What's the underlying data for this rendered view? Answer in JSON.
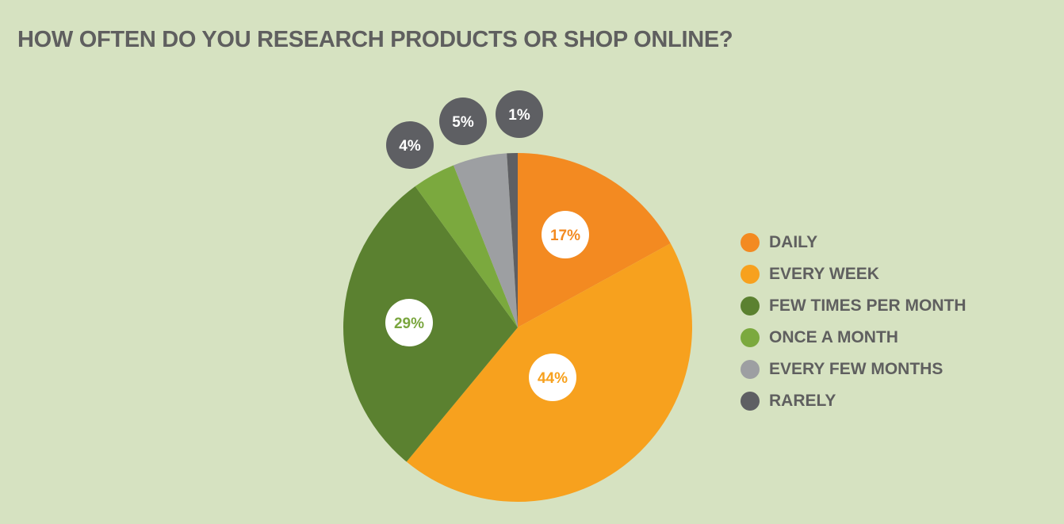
{
  "title": "HOW OFTEN DO YOU RESEARCH PRODUCTS OR SHOP ONLINE?",
  "chart_data": {
    "type": "pie",
    "title": "HOW OFTEN DO YOU RESEARCH PRODUCTS OR SHOP ONLINE?",
    "unit": "%",
    "legend_position": "right",
    "slices": [
      {
        "label": "DAILY",
        "value": 17,
        "display": "17%",
        "color": "#f38a21",
        "label_style": "inside-white-circle",
        "text_color": "#f38a21"
      },
      {
        "label": "EVERY WEEK",
        "value": 44,
        "display": "44%",
        "color": "#f7a11e",
        "label_style": "inside-white-circle",
        "text_color": "#f7a11e"
      },
      {
        "label": "FEW TIMES PER MONTH",
        "value": 29,
        "display": "29%",
        "color": "#5b8130",
        "label_style": "inside-white-circle",
        "text_color": "#7aa63f"
      },
      {
        "label": "ONCE A MONTH",
        "value": 4,
        "display": "4%",
        "color": "#7ba93e",
        "label_style": "outside-dark-circle",
        "text_color": "#ffffff"
      },
      {
        "label": "EVERY FEW MONTHS",
        "value": 5,
        "display": "5%",
        "color": "#9d9fa2",
        "label_style": "outside-dark-circle",
        "text_color": "#ffffff"
      },
      {
        "label": "RARELY",
        "value": 1,
        "display": "1%",
        "color": "#5e5f63",
        "label_style": "outside-dark-circle",
        "text_color": "#ffffff"
      }
    ],
    "badge_color": "#5e5f63",
    "inner_badge_color": "#ffffff"
  }
}
